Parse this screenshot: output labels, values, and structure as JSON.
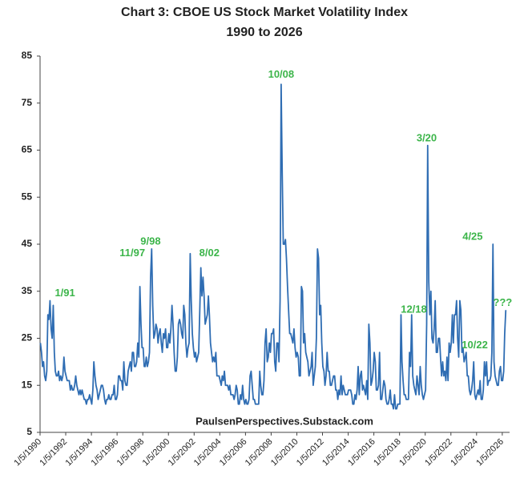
{
  "chart_data": {
    "type": "line",
    "title": "Chart 3: CBOE US Stock Market Volatility Index",
    "subtitle": "1990 to 2026",
    "source": "PaulsenPerspectives.Substack.com",
    "color": "#2f6db3",
    "x": [
      "1990-01",
      "1990-02",
      "1990-03",
      "1990-04",
      "1990-05",
      "1990-06",
      "1990-07",
      "1990-08",
      "1990-09",
      "1990-10",
      "1990-11",
      "1990-12",
      "1991-01",
      "1991-02",
      "1991-03",
      "1991-04",
      "1991-05",
      "1991-06",
      "1991-07",
      "1991-08",
      "1991-09",
      "1991-10",
      "1991-11",
      "1991-12",
      "1992-01",
      "1992-02",
      "1992-03",
      "1992-04",
      "1992-05",
      "1992-06",
      "1992-07",
      "1992-08",
      "1992-09",
      "1992-10",
      "1992-11",
      "1992-12",
      "1993-01",
      "1993-02",
      "1993-03",
      "1993-04",
      "1993-05",
      "1993-06",
      "1993-07",
      "1993-08",
      "1993-09",
      "1993-10",
      "1993-11",
      "1993-12",
      "1994-01",
      "1994-02",
      "1994-03",
      "1994-04",
      "1994-05",
      "1994-06",
      "1994-07",
      "1994-08",
      "1994-09",
      "1994-10",
      "1994-11",
      "1994-12",
      "1995-01",
      "1995-02",
      "1995-03",
      "1995-04",
      "1995-05",
      "1995-06",
      "1995-07",
      "1995-08",
      "1995-09",
      "1995-10",
      "1995-11",
      "1995-12",
      "1996-01",
      "1996-02",
      "1996-03",
      "1996-04",
      "1996-05",
      "1996-06",
      "1996-07",
      "1996-08",
      "1996-09",
      "1996-10",
      "1996-11",
      "1996-12",
      "1997-01",
      "1997-02",
      "1997-03",
      "1997-04",
      "1997-05",
      "1997-06",
      "1997-07",
      "1997-08",
      "1997-09",
      "1997-10",
      "1997-11",
      "1997-12",
      "1998-01",
      "1998-02",
      "1998-03",
      "1998-04",
      "1998-05",
      "1998-06",
      "1998-07",
      "1998-08",
      "1998-09",
      "1998-10",
      "1998-11",
      "1998-12",
      "1999-01",
      "1999-02",
      "1999-03",
      "1999-04",
      "1999-05",
      "1999-06",
      "1999-07",
      "1999-08",
      "1999-09",
      "1999-10",
      "1999-11",
      "1999-12",
      "2000-01",
      "2000-02",
      "2000-03",
      "2000-04",
      "2000-05",
      "2000-06",
      "2000-07",
      "2000-08",
      "2000-09",
      "2000-10",
      "2000-11",
      "2000-12",
      "2001-01",
      "2001-02",
      "2001-03",
      "2001-04",
      "2001-05",
      "2001-06",
      "2001-07",
      "2001-08",
      "2001-09",
      "2001-10",
      "2001-11",
      "2001-12",
      "2002-01",
      "2002-02",
      "2002-03",
      "2002-04",
      "2002-05",
      "2002-06",
      "2002-07",
      "2002-08",
      "2002-09",
      "2002-10",
      "2002-11",
      "2002-12",
      "2003-01",
      "2003-02",
      "2003-03",
      "2003-04",
      "2003-05",
      "2003-06",
      "2003-07",
      "2003-08",
      "2003-09",
      "2003-10",
      "2003-11",
      "2003-12",
      "2004-01",
      "2004-02",
      "2004-03",
      "2004-04",
      "2004-05",
      "2004-06",
      "2004-07",
      "2004-08",
      "2004-09",
      "2004-10",
      "2004-11",
      "2004-12",
      "2005-01",
      "2005-02",
      "2005-03",
      "2005-04",
      "2005-05",
      "2005-06",
      "2005-07",
      "2005-08",
      "2005-09",
      "2005-10",
      "2005-11",
      "2005-12",
      "2006-01",
      "2006-02",
      "2006-03",
      "2006-04",
      "2006-05",
      "2006-06",
      "2006-07",
      "2006-08",
      "2006-09",
      "2006-10",
      "2006-11",
      "2006-12",
      "2007-01",
      "2007-02",
      "2007-03",
      "2007-04",
      "2007-05",
      "2007-06",
      "2007-07",
      "2007-08",
      "2007-09",
      "2007-10",
      "2007-11",
      "2007-12",
      "2008-01",
      "2008-02",
      "2008-03",
      "2008-04",
      "2008-05",
      "2008-06",
      "2008-07",
      "2008-08",
      "2008-09",
      "2008-10",
      "2008-11",
      "2008-12",
      "2009-01",
      "2009-02",
      "2009-03",
      "2009-04",
      "2009-05",
      "2009-06",
      "2009-07",
      "2009-08",
      "2009-09",
      "2009-10",
      "2009-11",
      "2009-12",
      "2010-01",
      "2010-02",
      "2010-03",
      "2010-04",
      "2010-05",
      "2010-06",
      "2010-07",
      "2010-08",
      "2010-09",
      "2010-10",
      "2010-11",
      "2010-12",
      "2011-01",
      "2011-02",
      "2011-03",
      "2011-04",
      "2011-05",
      "2011-06",
      "2011-07",
      "2011-08",
      "2011-09",
      "2011-10",
      "2011-11",
      "2011-12",
      "2012-01",
      "2012-02",
      "2012-03",
      "2012-04",
      "2012-05",
      "2012-06",
      "2012-07",
      "2012-08",
      "2012-09",
      "2012-10",
      "2012-11",
      "2012-12",
      "2013-01",
      "2013-02",
      "2013-03",
      "2013-04",
      "2013-05",
      "2013-06",
      "2013-07",
      "2013-08",
      "2013-09",
      "2013-10",
      "2013-11",
      "2013-12",
      "2014-01",
      "2014-02",
      "2014-03",
      "2014-04",
      "2014-05",
      "2014-06",
      "2014-07",
      "2014-08",
      "2014-09",
      "2014-10",
      "2014-11",
      "2014-12",
      "2015-01",
      "2015-02",
      "2015-03",
      "2015-04",
      "2015-05",
      "2015-06",
      "2015-07",
      "2015-08",
      "2015-09",
      "2015-10",
      "2015-11",
      "2015-12",
      "2016-01",
      "2016-02",
      "2016-03",
      "2016-04",
      "2016-05",
      "2016-06",
      "2016-07",
      "2016-08",
      "2016-09",
      "2016-10",
      "2016-11",
      "2016-12",
      "2017-01",
      "2017-02",
      "2017-03",
      "2017-04",
      "2017-05",
      "2017-06",
      "2017-07",
      "2017-08",
      "2017-09",
      "2017-10",
      "2017-11",
      "2017-12",
      "2018-01",
      "2018-02",
      "2018-03",
      "2018-04",
      "2018-05",
      "2018-06",
      "2018-07",
      "2018-08",
      "2018-09",
      "2018-10",
      "2018-11",
      "2018-12",
      "2019-01",
      "2019-02",
      "2019-03",
      "2019-04",
      "2019-05",
      "2019-06",
      "2019-07",
      "2019-08",
      "2019-09",
      "2019-10",
      "2019-11",
      "2019-12",
      "2020-01",
      "2020-02",
      "2020-03",
      "2020-04",
      "2020-05",
      "2020-06",
      "2020-07",
      "2020-08",
      "2020-09",
      "2020-10",
      "2020-11",
      "2020-12",
      "2021-01",
      "2021-02",
      "2021-03",
      "2021-04",
      "2021-05",
      "2021-06",
      "2021-07",
      "2021-08",
      "2021-09",
      "2021-10",
      "2021-11",
      "2021-12",
      "2022-01",
      "2022-02",
      "2022-03",
      "2022-04",
      "2022-05",
      "2022-06",
      "2022-07",
      "2022-08",
      "2022-09",
      "2022-10",
      "2022-11",
      "2022-12",
      "2023-01",
      "2023-02",
      "2023-03",
      "2023-04",
      "2023-05",
      "2023-06",
      "2023-07",
      "2023-08",
      "2023-09",
      "2023-10",
      "2023-11",
      "2023-12",
      "2024-01",
      "2024-02",
      "2024-03",
      "2024-04",
      "2024-05",
      "2024-06",
      "2024-07",
      "2024-08",
      "2024-09",
      "2024-10",
      "2024-11",
      "2024-12",
      "2025-01",
      "2025-02",
      "2025-03",
      "2025-04",
      "2025-05",
      "2025-06",
      "2025-07",
      "2025-08",
      "2025-09",
      "2025-10",
      "2025-11",
      "2025-12",
      "2026-01",
      "2026-02",
      "2026-03",
      "2026-04"
    ],
    "values": [
      24,
      22,
      19,
      20,
      17,
      16,
      18,
      30,
      29,
      33,
      27,
      25,
      32,
      22,
      18,
      17,
      17,
      18,
      16,
      17,
      16,
      17,
      21,
      18,
      17,
      16,
      16,
      16,
      14,
      15,
      14,
      14,
      15,
      17,
      15,
      14,
      13,
      14,
      13,
      14,
      13,
      12,
      12,
      11,
      12,
      12,
      13,
      12,
      11,
      14,
      20,
      17,
      15,
      14,
      12,
      13,
      14,
      15,
      15,
      14,
      12,
      11,
      12,
      12,
      13,
      12,
      12,
      13,
      13,
      15,
      12,
      12,
      13,
      17,
      17,
      16,
      16,
      14,
      20,
      16,
      15,
      15,
      18,
      19,
      20,
      18,
      22,
      22,
      19,
      19,
      20,
      24,
      21,
      36,
      28,
      23,
      23,
      19,
      19,
      21,
      19,
      20,
      22,
      38,
      44,
      32,
      25,
      26,
      28,
      27,
      24,
      26,
      27,
      24,
      22,
      26,
      25,
      27,
      23,
      23,
      26,
      24,
      27,
      32,
      28,
      22,
      18,
      18,
      21,
      28,
      29,
      28,
      26,
      25,
      32,
      30,
      24,
      21,
      23,
      24,
      43,
      33,
      26,
      23,
      21,
      22,
      20,
      21,
      22,
      31,
      40,
      34,
      38,
      34,
      28,
      29,
      30,
      34,
      30,
      24,
      22,
      20,
      21,
      20,
      22,
      17,
      17,
      17,
      16,
      15,
      17,
      16,
      18,
      15,
      15,
      15,
      14,
      15,
      13,
      13,
      13,
      12,
      13,
      15,
      14,
      11,
      11,
      13,
      12,
      15,
      12,
      11,
      12,
      11,
      11,
      12,
      17,
      18,
      15,
      12,
      12,
      11,
      11,
      11,
      11,
      18,
      15,
      13,
      13,
      16,
      24,
      27,
      20,
      21,
      24,
      22,
      26,
      26,
      27,
      20,
      18,
      24,
      24,
      20,
      33,
      79,
      60,
      45,
      45,
      46,
      42,
      36,
      31,
      26,
      26,
      25,
      24,
      27,
      23,
      21,
      22,
      21,
      17,
      17,
      36,
      35,
      24,
      26,
      22,
      21,
      20,
      17,
      18,
      19,
      22,
      15,
      17,
      19,
      25,
      44,
      42,
      30,
      32,
      24,
      19,
      18,
      15,
      17,
      22,
      18,
      18,
      15,
      15,
      16,
      17,
      17,
      14,
      14,
      12,
      14,
      13,
      17,
      13,
      15,
      14,
      13,
      13,
      13,
      14,
      14,
      14,
      13,
      11,
      11,
      13,
      12,
      14,
      19,
      13,
      17,
      18,
      14,
      15,
      14,
      13,
      16,
      12,
      28,
      24,
      15,
      16,
      18,
      22,
      20,
      14,
      14,
      15,
      22,
      12,
      12,
      14,
      16,
      15,
      12,
      11,
      11,
      12,
      14,
      11,
      11,
      10,
      13,
      10,
      10,
      11,
      11,
      11,
      30,
      20,
      16,
      13,
      13,
      12,
      12,
      12,
      22,
      19,
      30,
      17,
      15,
      14,
      13,
      17,
      15,
      13,
      19,
      15,
      13,
      12,
      13,
      14,
      28,
      66,
      37,
      30,
      35,
      25,
      24,
      27,
      33,
      22,
      22,
      25,
      25,
      21,
      17,
      20,
      17,
      18,
      16,
      21,
      16,
      24,
      22,
      24,
      30,
      24,
      30,
      30,
      33,
      25,
      21,
      33,
      31,
      22,
      23,
      20,
      21,
      22,
      17,
      17,
      14,
      13,
      14,
      16,
      20,
      13,
      12,
      13,
      14,
      13,
      16,
      12,
      12,
      14,
      20,
      17,
      20,
      15,
      16,
      16,
      17,
      22,
      45,
      20,
      17,
      16,
      15,
      15,
      18,
      19,
      16,
      16,
      18,
      26,
      31
    ],
    "xlim": [
      "1990-01-05",
      "2026-08-01"
    ],
    "xticks": [
      {
        "value": "1990-01-05",
        "label": "1/5/1990"
      },
      {
        "value": "1992-01-05",
        "label": "1/5/1992"
      },
      {
        "value": "1994-01-05",
        "label": "1/5/1994"
      },
      {
        "value": "1996-01-05",
        "label": "1/5/1996"
      },
      {
        "value": "1998-01-05",
        "label": "1/5/1998"
      },
      {
        "value": "2000-01-05",
        "label": "1/5/2000"
      },
      {
        "value": "2002-01-05",
        "label": "1/5/2002"
      },
      {
        "value": "2004-01-05",
        "label": "1/5/2004"
      },
      {
        "value": "2006-01-05",
        "label": "1/5/2006"
      },
      {
        "value": "2008-01-05",
        "label": "1/5/2008"
      },
      {
        "value": "2010-01-05",
        "label": "1/5/2010"
      },
      {
        "value": "2012-01-05",
        "label": "1/5/2012"
      },
      {
        "value": "2014-01-05",
        "label": "1/5/2014"
      },
      {
        "value": "2016-01-05",
        "label": "1/5/2016"
      },
      {
        "value": "2018-01-05",
        "label": "1/5/2018"
      },
      {
        "value": "2020-01-05",
        "label": "1/5/2020"
      },
      {
        "value": "2022-01-05",
        "label": "1/5/2022"
      },
      {
        "value": "2024-01-05",
        "label": "1/5/2024"
      },
      {
        "value": "2026-01-05",
        "label": "1/5/2026"
      }
    ],
    "ylim": [
      5,
      85
    ],
    "yticks": [
      5,
      15,
      25,
      35,
      45,
      55,
      65,
      75,
      85
    ],
    "grid": false,
    "annotations": [
      {
        "text": "1/91",
        "x": "1991-12",
        "y": 34.5
      },
      {
        "text": "11/97",
        "x": "1997-03",
        "y": 43
      },
      {
        "text": "9/98",
        "x": "1998-08",
        "y": 45.5
      },
      {
        "text": "8/02",
        "x": "2003-03",
        "y": 43
      },
      {
        "text": "10/08",
        "x": "2008-10",
        "y": 81
      },
      {
        "text": "3/20",
        "x": "2020-02",
        "y": 67.5
      },
      {
        "text": "12/18",
        "x": "2019-02",
        "y": 31
      },
      {
        "text": "10/22",
        "x": "2023-11",
        "y": 23.5
      },
      {
        "text": "4/25",
        "x": "2023-09",
        "y": 46.5
      },
      {
        "text": "???",
        "x": "2026-01",
        "y": 32.5
      }
    ]
  }
}
